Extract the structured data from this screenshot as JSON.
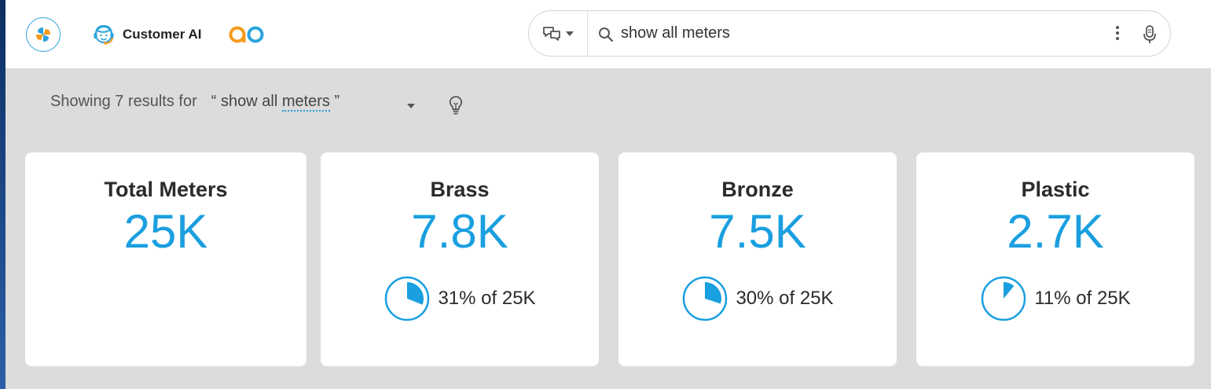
{
  "app": {
    "title": "Customer AI",
    "logo_icon": "pinwheel-logo-icon",
    "brand_icon": "support-agent-icon",
    "partner_logo": "ao",
    "accent_color": "#1a9fe0"
  },
  "search": {
    "value": "show all meters",
    "mode_icon": "chat-bubbles-icon",
    "search_icon": "magnifier-icon",
    "more_icon": "vertical-dots-icon",
    "mic_icon": "microphone-icon"
  },
  "results": {
    "prefix": "Showing 7 results for",
    "open_quote": "“",
    "query_plain": "show all ",
    "query_term": "meters",
    "close_quote": "”"
  },
  "cards": [
    {
      "title": "Total Meters",
      "value": "25K"
    },
    {
      "title": "Brass",
      "value": "7.8K",
      "share_text": "31% of 25K",
      "share_fraction": 0.31
    },
    {
      "title": "Bronze",
      "value": "7.5K",
      "share_text": "30% of 25K",
      "share_fraction": 0.3
    },
    {
      "title": "Plastic",
      "value": "2.7K",
      "share_text": "11% of 25K",
      "share_fraction": 0.11
    }
  ]
}
